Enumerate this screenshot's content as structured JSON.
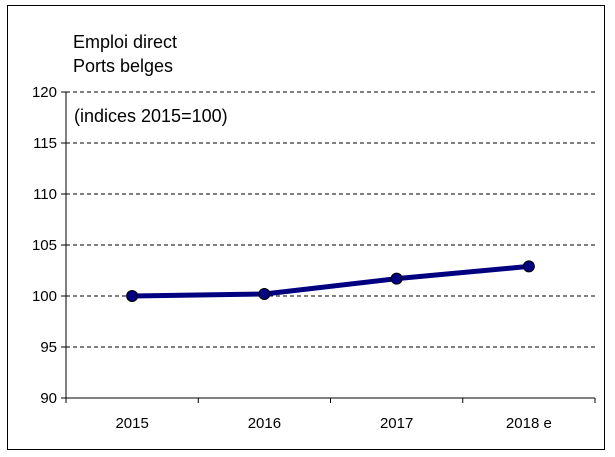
{
  "chart_data": {
    "type": "line",
    "title": [
      "Emploi direct",
      "Ports belges"
    ],
    "annotation": "(indices 2015=100)",
    "categories": [
      "2015",
      "2016",
      "2017",
      "2018 e"
    ],
    "series": [
      {
        "name": "",
        "values": [
          100.0,
          100.2,
          101.7,
          102.9
        ]
      }
    ],
    "xlabel": "",
    "ylabel": "",
    "ylim": [
      90,
      120
    ],
    "yticks": [
      90,
      95,
      100,
      105,
      110,
      115,
      120
    ],
    "grid": "horizontal-dashed",
    "legend": "none",
    "line_color": "#000080"
  }
}
